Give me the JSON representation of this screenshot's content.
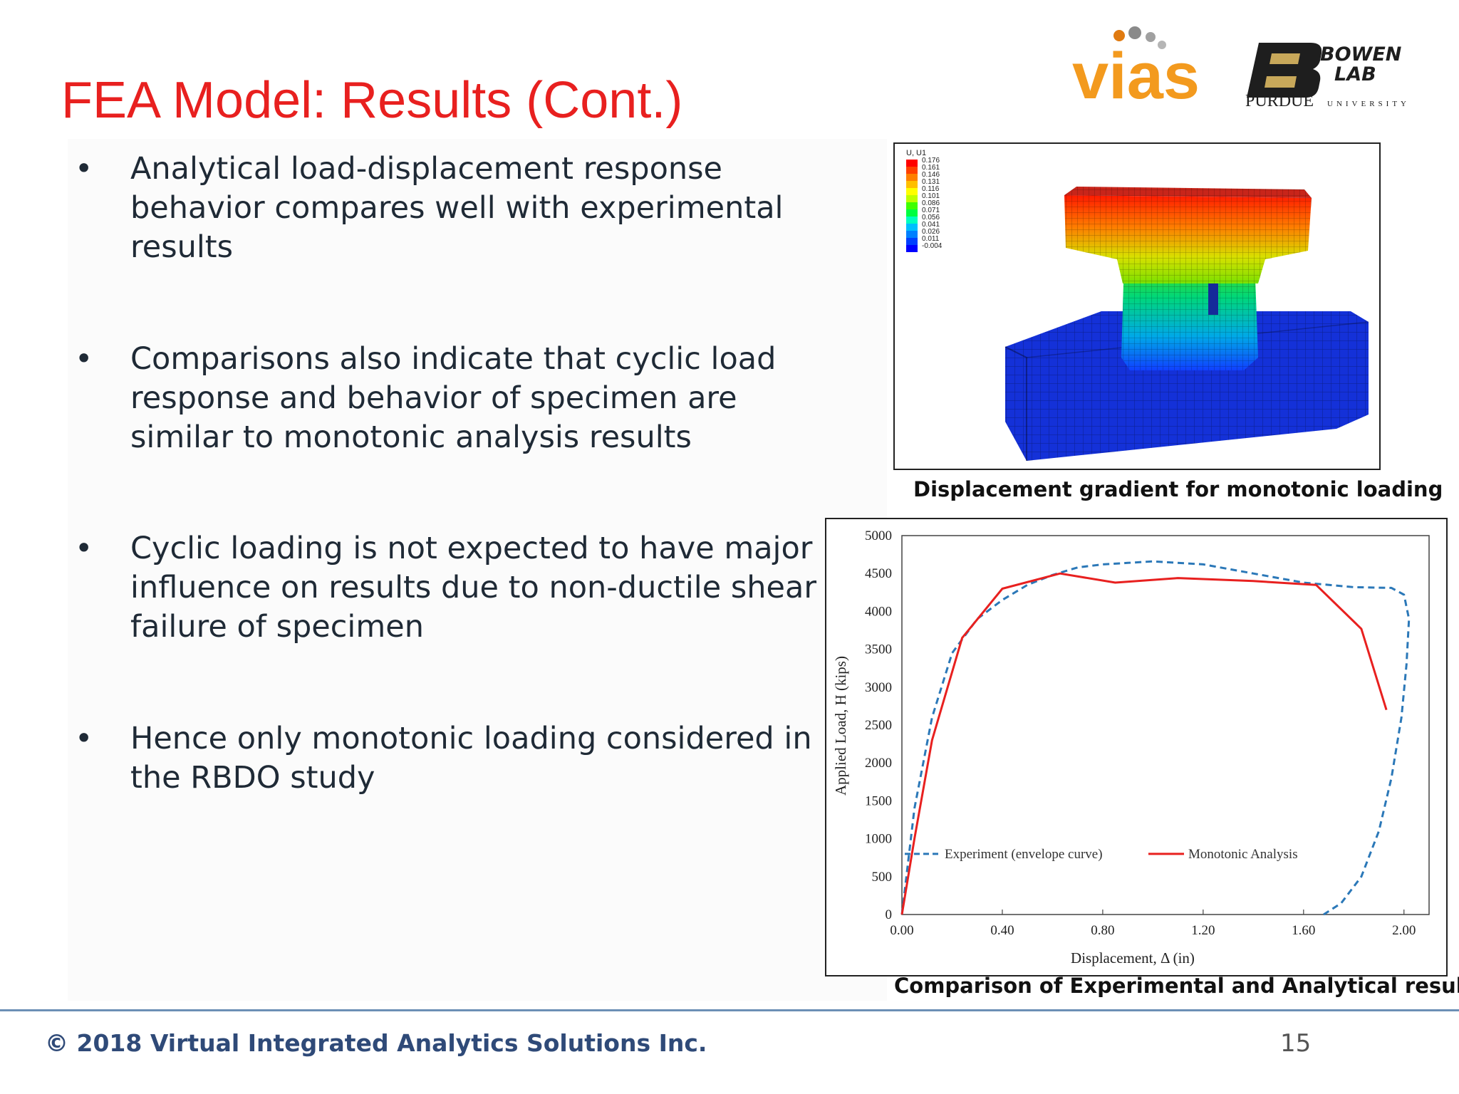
{
  "slide": {
    "title": "FEA Model: Results (Cont.)",
    "bullets": [
      "Analytical load-displacement response behavior compares well with experimental results",
      "Comparisons also indicate that cyclic load response and behavior of specimen are similar to monotonic analysis results",
      "Cyclic loading is not expected to have major influence on results due to non-ductile shear failure of specimen",
      "Hence only monotonic loading considered in the RBDO study"
    ],
    "bullet_marker": "•"
  },
  "logos": {
    "vias": "vias",
    "bowen_line1": "BOWEN",
    "bowen_line2": "LAB",
    "purdue": "PURDUE",
    "university": "UNIVERSITY"
  },
  "fea_figure": {
    "legend_title": "U, U1",
    "legend_values": [
      "0.176",
      "0.161",
      "0.146",
      "0.131",
      "0.116",
      "0.101",
      "0.086",
      "0.071",
      "0.056",
      "0.041",
      "0.026",
      "0.011",
      "-0.004"
    ],
    "legend_colors": [
      "#ff0000",
      "#ff4000",
      "#ff8000",
      "#ffbf00",
      "#ffff00",
      "#bfff00",
      "#40ff00",
      "#00ff40",
      "#00ffbf",
      "#00bfff",
      "#0080ff",
      "#0040ff",
      "#0000ff"
    ],
    "caption": "Displacement gradient for monotonic loading"
  },
  "chart_caption": "Comparison of Experimental and Analytical results",
  "chart_data": {
    "type": "line",
    "xlabel": "Displacement, Δ (in)",
    "ylabel": "Applied Load, H (kips)",
    "xlim": [
      0,
      2.1
    ],
    "ylim": [
      0,
      5000
    ],
    "x_ticks": [
      "0.00",
      "0.40",
      "0.80",
      "1.20",
      "1.60",
      "2.00"
    ],
    "y_ticks": [
      "0",
      "500",
      "1000",
      "1500",
      "2000",
      "2500",
      "3000",
      "3500",
      "4000",
      "4500",
      "5000"
    ],
    "grid": false,
    "legend_position": "bottom-inside",
    "series": [
      {
        "name": "Experiment (envelope curve)",
        "color": "#2b78b8",
        "style": "dashed",
        "x": [
          0.0,
          0.05,
          0.12,
          0.2,
          0.3,
          0.4,
          0.5,
          0.6,
          0.7,
          0.8,
          0.9,
          1.0,
          1.2,
          1.4,
          1.6,
          1.8,
          1.95,
          2.0,
          2.02,
          2.01,
          1.99,
          1.95,
          1.9,
          1.83,
          1.75,
          1.68
        ],
        "y": [
          0,
          1400,
          2600,
          3450,
          3900,
          4150,
          4350,
          4480,
          4580,
          4620,
          4640,
          4660,
          4620,
          4500,
          4380,
          4320,
          4310,
          4220,
          3900,
          3300,
          2600,
          1800,
          1100,
          500,
          150,
          0
        ]
      },
      {
        "name": "Monotonic Analysis",
        "color": "#e8201f",
        "style": "solid",
        "x": [
          0.0,
          0.05,
          0.12,
          0.24,
          0.4,
          0.63,
          0.85,
          1.1,
          1.4,
          1.65,
          1.83,
          1.93
        ],
        "y": [
          0,
          1000,
          2300,
          3650,
          4300,
          4500,
          4380,
          4440,
          4400,
          4350,
          3770,
          2700
        ]
      }
    ]
  },
  "footer": {
    "copyright": "© 2018 Virtual Integrated Analytics Solutions Inc.",
    "page": "15"
  }
}
